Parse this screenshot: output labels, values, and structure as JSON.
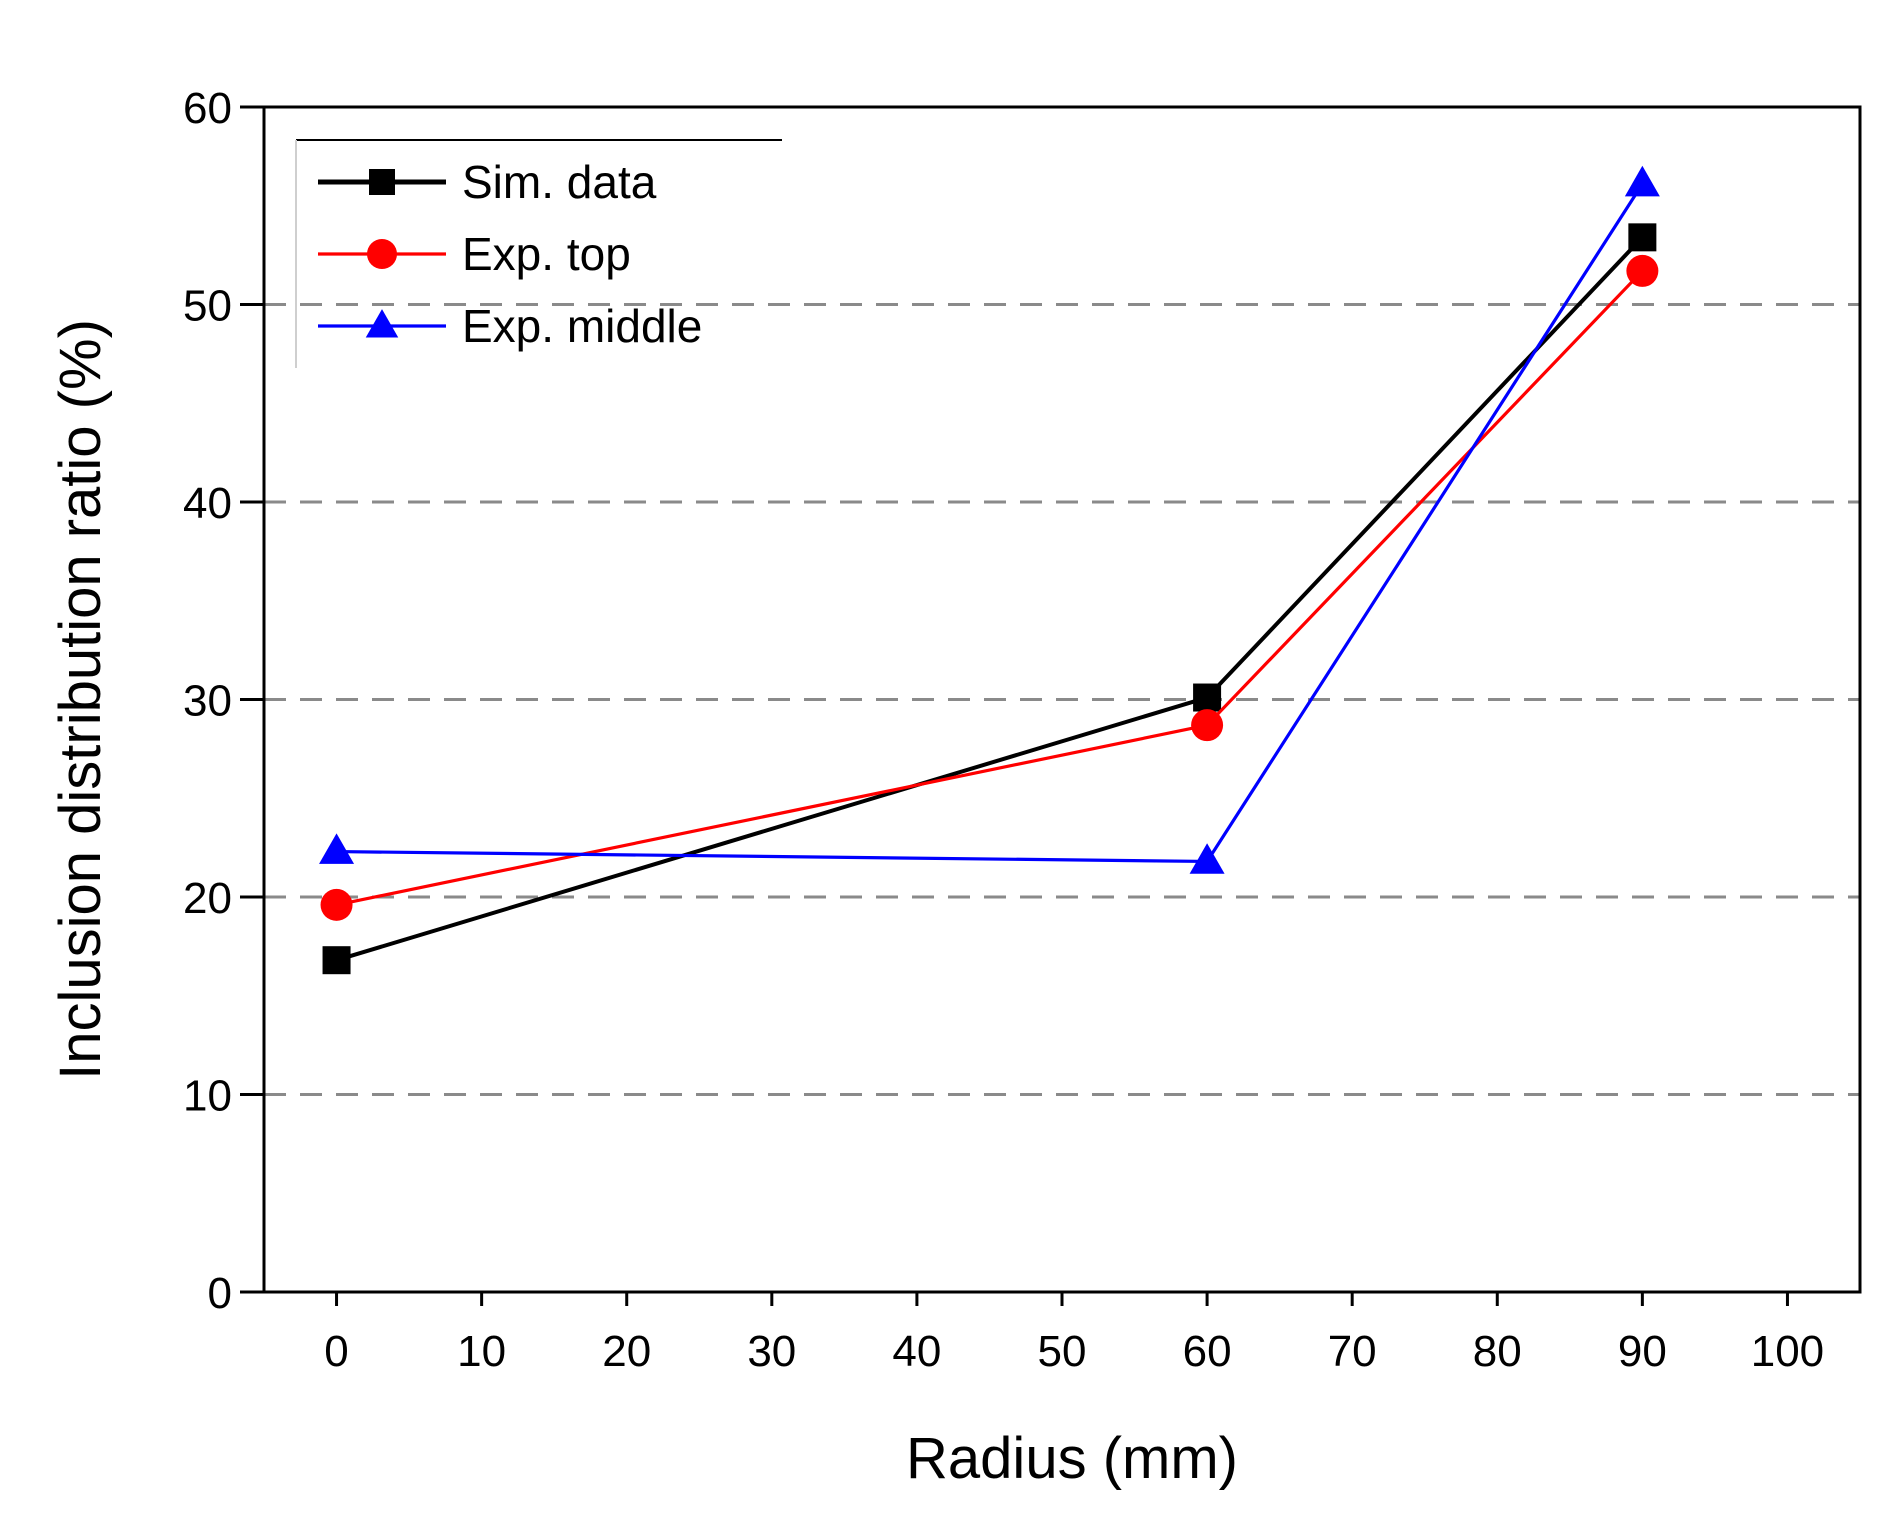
{
  "chart_data": {
    "type": "line",
    "title": "",
    "xlabel": "Radius (mm)",
    "ylabel": "Inclusion distribution ratio (%)",
    "xlim": [
      -5,
      105
    ],
    "ylim": [
      0,
      60
    ],
    "xticks": [
      0,
      10,
      20,
      30,
      40,
      50,
      60,
      70,
      80,
      90,
      100
    ],
    "yticks": [
      0,
      10,
      20,
      30,
      40,
      50,
      60
    ],
    "grid": "horizontal dashed at 10, 20, 30, 40, 50",
    "legend_position": "top-left",
    "series": [
      {
        "name": "Sim. data",
        "color": "#000000",
        "marker": "square",
        "x": [
          0,
          60,
          90
        ],
        "y": [
          16.8,
          30.1,
          53.4
        ]
      },
      {
        "name": "Exp. top",
        "color": "#ff0000",
        "marker": "circle",
        "x": [
          0,
          60,
          90
        ],
        "y": [
          19.6,
          28.7,
          51.7
        ]
      },
      {
        "name": "Exp. middle",
        "color": "#0000ff",
        "marker": "triangle",
        "x": [
          0,
          60,
          90
        ],
        "y": [
          22.3,
          21.8,
          56.1
        ]
      }
    ]
  }
}
